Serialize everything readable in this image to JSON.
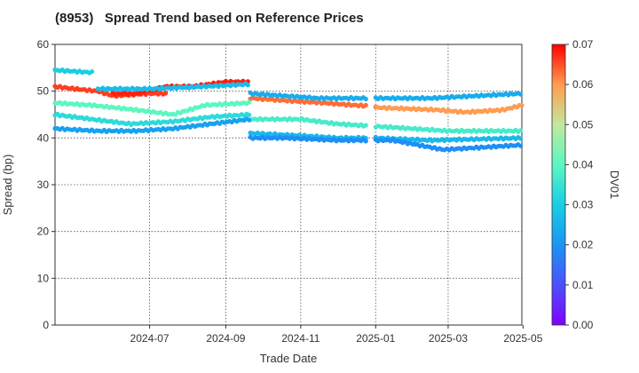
{
  "title": "(8953)   Spread Trend based on Reference Prices",
  "chart_data": {
    "type": "scatter",
    "title": "(8953)   Spread Trend based on Reference Prices",
    "xlabel": "Trade Date",
    "ylabel": "Spread (bp)",
    "colorbar_label": "DV01",
    "xlim": [
      "2024-04-15",
      "2025-04-30"
    ],
    "ylim": [
      0,
      60
    ],
    "x_ticks": [
      "2024-07",
      "2024-09",
      "2024-11",
      "2025-01",
      "2025-03",
      "2025-05"
    ],
    "y_ticks": [
      0,
      10,
      20,
      30,
      40,
      50,
      60
    ],
    "colorbar_ticks": [
      "0.00",
      "0.01",
      "0.02",
      "0.03",
      "0.04",
      "0.05",
      "0.06",
      "0.07"
    ],
    "colorbar_range": [
      0,
      0.07
    ],
    "colormap": "rainbow",
    "grid": true,
    "series": [
      {
        "dv01": 0.066,
        "points": [
          [
            "2024-04-15",
            51.0
          ],
          [
            "2024-05-01",
            50.5
          ],
          [
            "2024-05-20",
            50.0
          ],
          [
            "2024-06-01",
            49.0
          ],
          [
            "2024-07-01",
            49.5
          ],
          [
            "2024-07-15",
            49.5
          ]
        ]
      },
      {
        "dv01": 0.068,
        "points": [
          [
            "2024-06-01",
            49.5
          ],
          [
            "2024-06-20",
            49.5
          ],
          [
            "2024-07-15",
            51.0
          ],
          [
            "2024-08-05",
            51.0
          ],
          [
            "2024-09-01",
            52.0
          ],
          [
            "2024-09-20",
            52.0
          ]
        ]
      },
      {
        "dv01": 0.063,
        "points": [
          [
            "2024-09-21",
            48.5
          ],
          [
            "2024-10-20",
            48.0
          ],
          [
            "2024-11-20",
            47.5
          ],
          [
            "2024-12-15",
            47.0
          ],
          [
            "2025-01-01",
            46.8
          ]
        ]
      },
      {
        "dv01": 0.06,
        "points": [
          [
            "2025-01-02",
            46.5
          ],
          [
            "2025-02-20",
            46.0
          ],
          [
            "2025-03-15",
            45.5
          ],
          [
            "2025-04-15",
            46.0
          ],
          [
            "2025-04-30",
            47.0
          ]
        ]
      },
      {
        "dv01": 0.03,
        "points": [
          [
            "2024-04-15",
            54.5
          ],
          [
            "2024-05-15",
            54.0
          ]
        ]
      },
      {
        "dv01": 0.027,
        "points": [
          [
            "2024-05-20",
            50.5
          ],
          [
            "2024-07-01",
            50.5
          ],
          [
            "2024-08-15",
            51.0
          ],
          [
            "2024-09-20",
            51.5
          ]
        ]
      },
      {
        "dv01": 0.024,
        "points": [
          [
            "2024-09-21",
            49.5
          ],
          [
            "2024-11-15",
            48.5
          ],
          [
            "2024-12-25",
            48.5
          ],
          [
            "2025-02-15",
            48.5
          ],
          [
            "2025-04-30",
            49.5
          ]
        ]
      },
      {
        "dv01": 0.04,
        "points": [
          [
            "2024-04-15",
            47.5
          ],
          [
            "2024-05-15",
            47.0
          ],
          [
            "2024-06-20",
            46.0
          ],
          [
            "2024-07-20",
            45.0
          ],
          [
            "2024-08-15",
            47.0
          ],
          [
            "2024-09-20",
            47.5
          ]
        ]
      },
      {
        "dv01": 0.037,
        "points": [
          [
            "2024-09-21",
            44.0
          ],
          [
            "2024-11-01",
            44.0
          ],
          [
            "2024-12-01",
            43.0
          ],
          [
            "2025-01-01",
            42.5
          ],
          [
            "2025-03-01",
            41.5
          ],
          [
            "2025-04-30",
            41.5
          ]
        ]
      },
      {
        "dv01": 0.033,
        "points": [
          [
            "2024-04-15",
            45.0
          ],
          [
            "2024-05-15",
            44.0
          ],
          [
            "2024-06-15",
            43.0
          ],
          [
            "2024-07-20",
            43.5
          ],
          [
            "2024-08-20",
            44.5
          ],
          [
            "2024-09-20",
            45.0
          ]
        ]
      },
      {
        "dv01": 0.022,
        "points": [
          [
            "2024-04-15",
            42.0
          ],
          [
            "2024-05-20",
            41.5
          ],
          [
            "2024-06-20",
            41.5
          ],
          [
            "2024-07-20",
            42.0
          ],
          [
            "2024-08-20",
            43.0
          ],
          [
            "2024-09-20",
            44.0
          ]
        ]
      },
      {
        "dv01": 0.026,
        "points": [
          [
            "2024-09-21",
            41.0
          ],
          [
            "2024-11-01",
            40.5
          ],
          [
            "2024-12-01",
            40.0
          ],
          [
            "2025-01-01",
            40.0
          ],
          [
            "2025-02-15",
            39.5
          ],
          [
            "2025-04-30",
            40.0
          ]
        ]
      },
      {
        "dv01": 0.019,
        "points": [
          [
            "2024-09-21",
            40.0
          ],
          [
            "2024-10-20",
            40.0
          ],
          [
            "2024-12-01",
            39.5
          ],
          [
            "2025-01-15",
            39.5
          ],
          [
            "2025-02-25",
            37.5
          ],
          [
            "2025-04-30",
            38.5
          ]
        ]
      }
    ]
  }
}
